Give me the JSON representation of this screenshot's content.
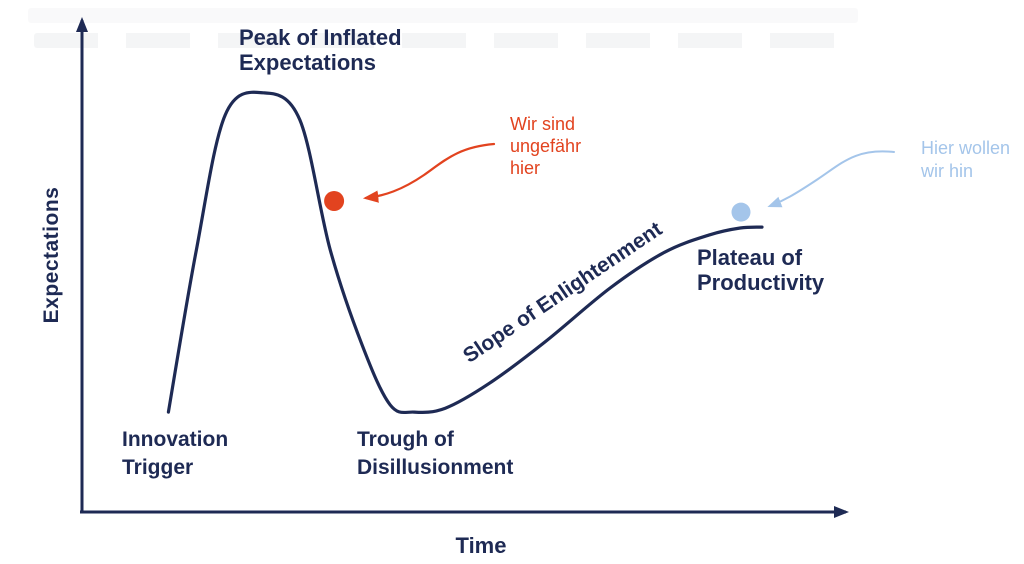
{
  "colors": {
    "navy": "#1e2a54",
    "red": "#e2431f",
    "blue": "#a4c5ea",
    "background": "#ffffff"
  },
  "chart_data": {
    "type": "line",
    "title": "",
    "xlabel": "Time",
    "ylabel": "Expectations",
    "xlim": [
      0,
      100
    ],
    "ylim": [
      0,
      100
    ],
    "ticks": "none",
    "grid": false,
    "curve": {
      "name": "hype-cycle",
      "x": [
        11.1,
        14.7,
        18.4,
        23.3,
        28.0,
        31.9,
        36.0,
        39.6,
        42.7,
        46.7,
        52.4,
        59.5,
        67.9,
        74.9,
        80.7,
        84.6,
        87.4
      ],
      "y": [
        20.9,
        54.5,
        82.4,
        87.0,
        81.4,
        54.5,
        34.8,
        22.4,
        20.9,
        21.7,
        26.9,
        35.4,
        46.6,
        54.0,
        57.6,
        59.0,
        59.2
      ]
    },
    "phase_labels": {
      "peak": {
        "text": "Peak of Inflated\nExpectations"
      },
      "innovation": {
        "text": "Innovation\nTrigger"
      },
      "trough": {
        "text": "Trough of\nDisillusionment"
      },
      "slope": {
        "text": "Slope of Enlightenment"
      },
      "plateau": {
        "text": "Plateau of\nProductivity"
      }
    },
    "markers": [
      {
        "id": "current-position",
        "label": "Wir sind\nungefähr\nhier",
        "x": 32.4,
        "y": 64.6,
        "radius": 10,
        "color": "#e2431f"
      },
      {
        "id": "target-position",
        "label": "Hier wollen\nwir hin",
        "x": 84.7,
        "y": 62.3,
        "radius": 9.5,
        "color": "#a4c5ea"
      }
    ],
    "legend": "none"
  }
}
